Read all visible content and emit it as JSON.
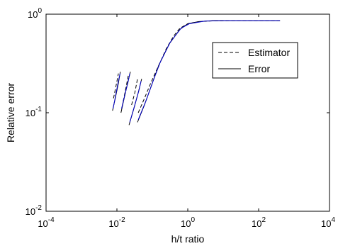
{
  "chart_data": {
    "type": "line",
    "title": "",
    "xlabel": "h/t ratio",
    "ylabel": "Relative error",
    "xscale": "log",
    "yscale": "log",
    "xlim": [
      0.0001,
      10000
    ],
    "ylim": [
      0.01,
      1
    ],
    "x_ticks": [
      0.0001,
      0.01,
      1,
      100,
      10000
    ],
    "x_tick_labels": [
      {
        "base": "10",
        "exp": "-4"
      },
      {
        "base": "10",
        "exp": "-2"
      },
      {
        "base": "10",
        "exp": "0"
      },
      {
        "base": "10",
        "exp": "2"
      },
      {
        "base": "10",
        "exp": "4"
      }
    ],
    "y_ticks": [
      0.01,
      0.1,
      1
    ],
    "y_tick_labels": [
      {
        "base": "10",
        "exp": "-2"
      },
      {
        "base": "10",
        "exp": "-1"
      },
      {
        "base": "10",
        "exp": "0"
      }
    ],
    "grid": false,
    "legend_position": "top-right",
    "series": [
      {
        "name": "Estimator",
        "color": "#000000",
        "dash": "dashed",
        "segments": [
          [
            [
              0.008,
              0.14
            ],
            [
              0.0095,
              0.19
            ],
            [
              0.011,
              0.25
            ]
          ],
          [
            [
              0.015,
              0.13
            ],
            [
              0.018,
              0.18
            ],
            [
              0.021,
              0.24
            ]
          ],
          [
            [
              0.026,
              0.12
            ],
            [
              0.032,
              0.16
            ],
            [
              0.038,
              0.22
            ]
          ],
          [
            [
              0.04,
              0.1
            ],
            [
              0.06,
              0.14
            ],
            [
              0.09,
              0.2
            ],
            [
              0.15,
              0.3
            ],
            [
              0.25,
              0.45
            ],
            [
              0.4,
              0.6
            ],
            [
              0.6,
              0.72
            ],
            [
              1,
              0.8
            ],
            [
              2,
              0.84
            ],
            [
              5,
              0.855
            ],
            [
              20,
              0.86
            ],
            [
              100,
              0.86
            ],
            [
              400,
              0.86
            ]
          ]
        ]
      },
      {
        "name": "Error",
        "color": "#000000",
        "dash": "solid",
        "segments": [
          [
            [
              0.0075,
              0.105
            ],
            [
              0.009,
              0.14
            ],
            [
              0.011,
              0.2
            ],
            [
              0.0125,
              0.26
            ]
          ],
          [
            [
              0.013,
              0.1
            ],
            [
              0.016,
              0.14
            ],
            [
              0.02,
              0.2
            ],
            [
              0.024,
              0.26
            ]
          ],
          [
            [
              0.022,
              0.075
            ],
            [
              0.03,
              0.11
            ],
            [
              0.04,
              0.16
            ],
            [
              0.05,
              0.22
            ]
          ],
          [
            [
              0.038,
              0.08
            ],
            [
              0.06,
              0.12
            ],
            [
              0.1,
              0.2
            ],
            [
              0.15,
              0.3
            ],
            [
              0.3,
              0.5
            ],
            [
              0.6,
              0.7
            ],
            [
              1,
              0.8
            ],
            [
              2,
              0.84
            ],
            [
              5,
              0.86
            ],
            [
              50,
              0.86
            ],
            [
              400,
              0.86
            ]
          ]
        ]
      },
      {
        "color": "#0000cc",
        "dash": "solid",
        "segments": [
          [
            [
              0.0078,
              0.11
            ],
            [
              0.0092,
              0.15
            ],
            [
              0.011,
              0.21
            ],
            [
              0.0123,
              0.25
            ]
          ],
          [
            [
              0.0135,
              0.11
            ],
            [
              0.017,
              0.155
            ],
            [
              0.021,
              0.21
            ],
            [
              0.023,
              0.25
            ]
          ],
          [
            [
              0.023,
              0.08
            ],
            [
              0.032,
              0.12
            ],
            [
              0.042,
              0.17
            ],
            [
              0.048,
              0.21
            ]
          ],
          [
            [
              0.04,
              0.085
            ],
            [
              0.065,
              0.13
            ],
            [
              0.11,
              0.22
            ],
            [
              0.17,
              0.33
            ],
            [
              0.32,
              0.52
            ],
            [
              0.65,
              0.72
            ],
            [
              1.1,
              0.8
            ],
            [
              3,
              0.85
            ],
            [
              10,
              0.86
            ],
            [
              100,
              0.86
            ],
            [
              400,
              0.86
            ]
          ]
        ]
      }
    ]
  }
}
